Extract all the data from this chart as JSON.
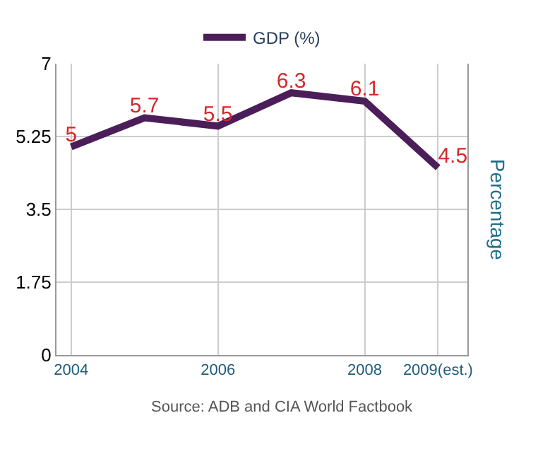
{
  "chart_data": {
    "type": "line",
    "categories": [
      "2004",
      null,
      "2006",
      null,
      "2008",
      "2009(est.)"
    ],
    "series": [
      {
        "name": "GDP (%)",
        "color": "#4b1e5a",
        "values": [
          5,
          5.7,
          5.5,
          6.3,
          6.1,
          4.5
        ]
      }
    ],
    "ylim": [
      0,
      7
    ],
    "yticks": [
      0,
      1.75,
      3.5,
      5.25,
      7
    ],
    "ylabel": "Percentage",
    "data_labels": true,
    "grid": true,
    "legend": "top",
    "marker": "none",
    "annotations": [
      "Source: ADB and CIA World Factbook"
    ]
  }
}
